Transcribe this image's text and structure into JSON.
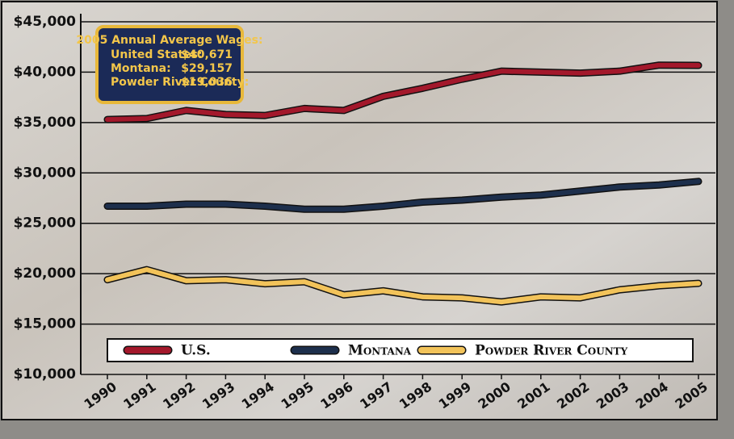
{
  "chart_data": {
    "type": "line",
    "categories": [
      "1990",
      "1991",
      "1992",
      "1993",
      "1994",
      "1995",
      "1996",
      "1997",
      "1998",
      "1999",
      "2000",
      "2001",
      "2002",
      "2003",
      "2004",
      "2005"
    ],
    "series": [
      {
        "name": "U.S.",
        "color": "#a3182b",
        "values": [
          35300,
          35400,
          36200,
          35800,
          35700,
          36400,
          36200,
          37600,
          38400,
          39300,
          40100,
          40000,
          39900,
          40100,
          40700,
          40671
        ]
      },
      {
        "name": "Montana",
        "color": "#1d2f4c",
        "values": [
          26700,
          26700,
          26900,
          26900,
          26700,
          26400,
          26400,
          26700,
          27100,
          27300,
          27600,
          27800,
          28200,
          28600,
          28800,
          29157
        ]
      },
      {
        "name": "Powder River County",
        "color": "#f2c35a",
        "values": [
          19400,
          20400,
          19300,
          19400,
          19000,
          19200,
          17900,
          18300,
          17700,
          17600,
          17200,
          17700,
          17600,
          18400,
          18800,
          19036
        ]
      }
    ],
    "ylim": [
      10000,
      45000
    ],
    "yticks": [
      {
        "value": 10000,
        "label": "$10,000"
      },
      {
        "value": 15000,
        "label": "$15,000"
      },
      {
        "value": 20000,
        "label": "$20,000"
      },
      {
        "value": 25000,
        "label": "$25,000"
      },
      {
        "value": 30000,
        "label": "$30,000"
      },
      {
        "value": 35000,
        "label": "$35,000"
      },
      {
        "value": 40000,
        "label": "$40,000"
      },
      {
        "value": 45000,
        "label": "$45,000"
      }
    ],
    "grid": true,
    "legend": "bottom",
    "annotation": {
      "title": "2005 Annual Average Wages:",
      "rows": [
        {
          "label": "United States:",
          "value": "$40,671"
        },
        {
          "label": "Montana:",
          "value": "$29,157"
        },
        {
          "label": "Powder River County:",
          "value": "$19,036"
        }
      ]
    }
  }
}
